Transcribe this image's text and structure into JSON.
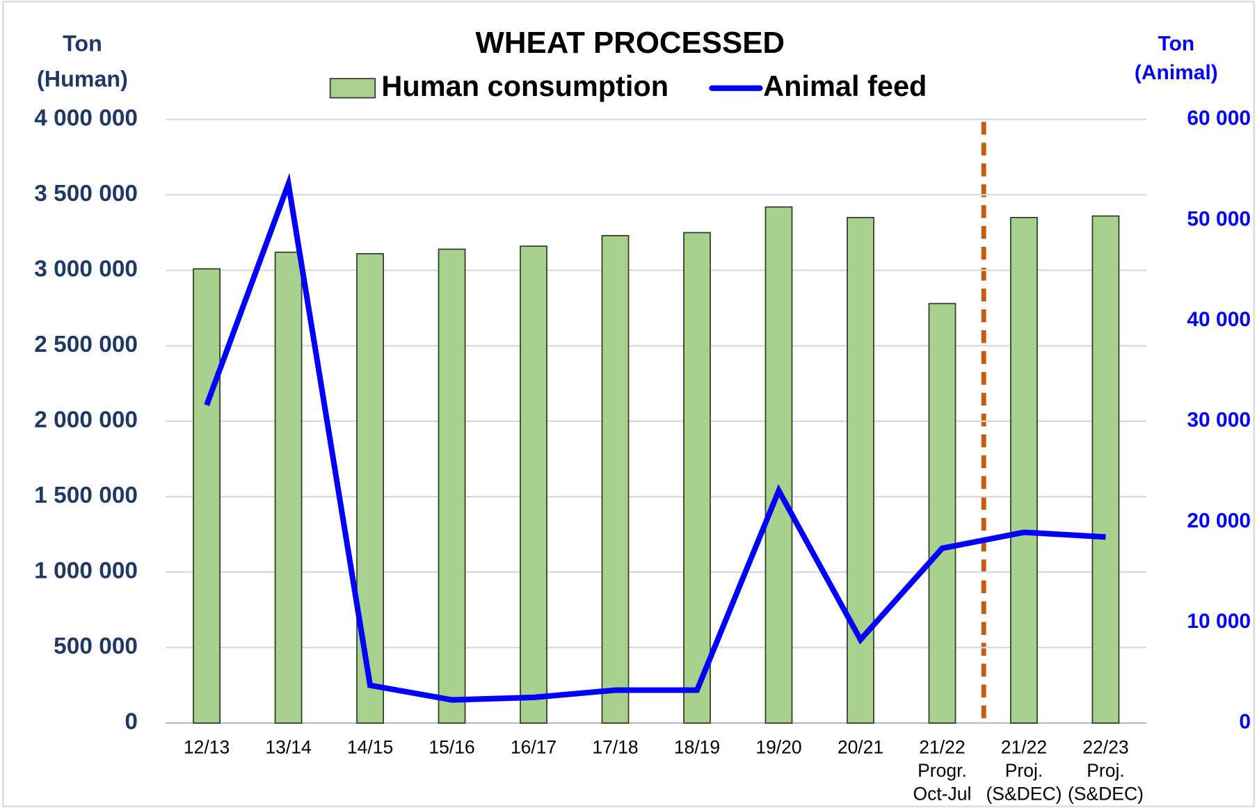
{
  "chart_data": {
    "type": "bar_line",
    "title": "WHEAT PROCESSED",
    "y_label": "Ton\n(Human)",
    "y2_label": "Ton\n(Animal)",
    "categories": [
      "12/13",
      "13/14",
      "14/15",
      "15/16",
      "16/17",
      "17/18",
      "18/19",
      "19/20",
      "20/21",
      "21/22\nProgr.\nOct-Jul",
      "21/22\nProj.\n(S&DEC)",
      "22/23\nProj.\n(S&DEC)"
    ],
    "series": [
      {
        "name": "Human consumption",
        "type": "bar",
        "color": "#a9d18e",
        "values": [
          3010000,
          3120000,
          3110000,
          3140000,
          3160000,
          3230000,
          3250000,
          3420000,
          3350000,
          2780000,
          3350000,
          3360000
        ]
      },
      {
        "name": "Animal feed",
        "type": "line",
        "axis": "y2",
        "color": "#0000ff",
        "values": [
          31600,
          53600,
          3750,
          2300,
          2550,
          3270,
          3270,
          23100,
          8290,
          17370,
          18960,
          18490
        ]
      }
    ],
    "ylim": [
      0,
      4000000
    ],
    "yticks": [
      0,
      {
        "value": 500000,
        "label": "500 000"
      },
      {
        "value": 1000000,
        "label": "1 000 000"
      },
      {
        "value": 1500000,
        "label": "1 500 000"
      },
      {
        "value": 2000000,
        "label": "2 000 000"
      },
      {
        "value": 2500000,
        "label": "2 500 000"
      },
      {
        "value": 3000000,
        "label": "3 000 000"
      },
      {
        "value": 3500000,
        "label": "3 500 000"
      },
      {
        "value": 4000000,
        "label": "4 000 000"
      }
    ],
    "y2lim": [
      0,
      60000
    ],
    "y2ticks": [
      0,
      {
        "value": 10000,
        "label": "10 000"
      },
      {
        "value": 20000,
        "label": "20 000"
      },
      {
        "value": 30000,
        "label": "30 000"
      },
      {
        "value": 40000,
        "label": "40 000"
      },
      {
        "value": 50000,
        "label": "50 000"
      },
      {
        "value": 60000,
        "label": "60 000"
      }
    ],
    "grid": true
  }
}
